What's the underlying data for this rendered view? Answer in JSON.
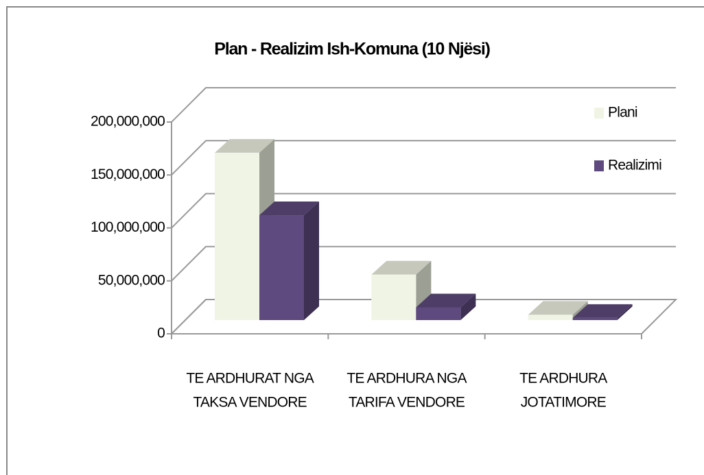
{
  "chart_data": {
    "type": "bar3d",
    "title": "Plan - Realizim Ish-Komuna (10 Njësi)",
    "categories": [
      [
        "TE ARDHURAT  NGA",
        "TAKSA VENDORE"
      ],
      [
        "TE ARDHURA  NGA",
        "TARIFA VENDORE"
      ],
      [
        "TE  ARDHURA",
        "JOTATIMORE"
      ]
    ],
    "series": [
      {
        "name": "Plani",
        "color": "#f0f4e4",
        "values": [
          158000000,
          43000000,
          5000000
        ]
      },
      {
        "name": "Realizimi",
        "color": "#5e4a7e",
        "values": [
          99000000,
          12000000,
          2000000
        ]
      }
    ],
    "ylim": [
      0,
      200000000
    ],
    "yticks": [
      0,
      {
        "value": 50000000,
        "label": "50,000,000"
      },
      {
        "value": 100000000,
        "label": "100,000,000"
      },
      {
        "value": 150000000,
        "label": "150,000,000"
      },
      {
        "value": 200000000,
        "label": "200,000,000"
      }
    ],
    "grid": true,
    "legend": "right"
  }
}
